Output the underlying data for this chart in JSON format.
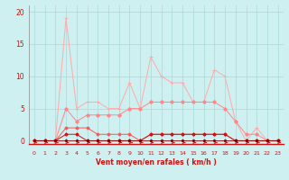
{
  "xlabel": "Vent moyen/en rafales ( km/h )",
  "x": [
    0,
    1,
    2,
    3,
    4,
    5,
    6,
    7,
    8,
    9,
    10,
    11,
    12,
    13,
    14,
    15,
    16,
    17,
    18,
    19,
    20,
    21,
    22,
    23
  ],
  "series1": [
    0,
    0,
    0,
    19,
    5,
    6,
    6,
    5,
    5,
    9,
    5,
    13,
    10,
    9,
    9,
    6,
    6,
    11,
    10,
    3,
    0,
    2,
    0,
    0
  ],
  "series2": [
    0,
    0,
    0,
    5,
    3,
    4,
    4,
    4,
    4,
    5,
    5,
    6,
    6,
    6,
    6,
    6,
    6,
    6,
    5,
    3,
    1,
    1,
    0,
    0
  ],
  "series3": [
    0,
    0,
    0,
    2,
    2,
    2,
    1,
    1,
    1,
    1,
    0,
    1,
    1,
    1,
    1,
    1,
    1,
    1,
    1,
    0,
    0,
    0,
    0,
    0
  ],
  "series4": [
    0,
    0,
    0,
    1,
    1,
    0,
    0,
    0,
    0,
    0,
    0,
    1,
    1,
    1,
    1,
    1,
    1,
    1,
    1,
    0,
    0,
    0,
    0,
    0
  ],
  "series5": [
    0,
    0,
    0,
    0,
    0,
    0,
    0,
    0,
    0,
    0,
    0,
    0,
    0,
    0,
    0,
    0,
    0,
    0,
    0,
    0,
    0,
    0,
    0,
    0
  ],
  "bg_color": "#cef0f0",
  "grid_color": "#aad8d8",
  "line_color_s1": "#ffaaaa",
  "line_color_s2": "#ff8888",
  "line_color_s3": "#ff5555",
  "line_color_s4": "#cc1111",
  "line_color_s5": "#880000",
  "arrow_color": "#cc1111",
  "axis_label_color": "#cc1111",
  "tick_label_color": "#cc1111",
  "spine_color": "#cc1111",
  "ylim": [
    0,
    20
  ],
  "yticks": [
    0,
    5,
    10,
    15,
    20
  ]
}
